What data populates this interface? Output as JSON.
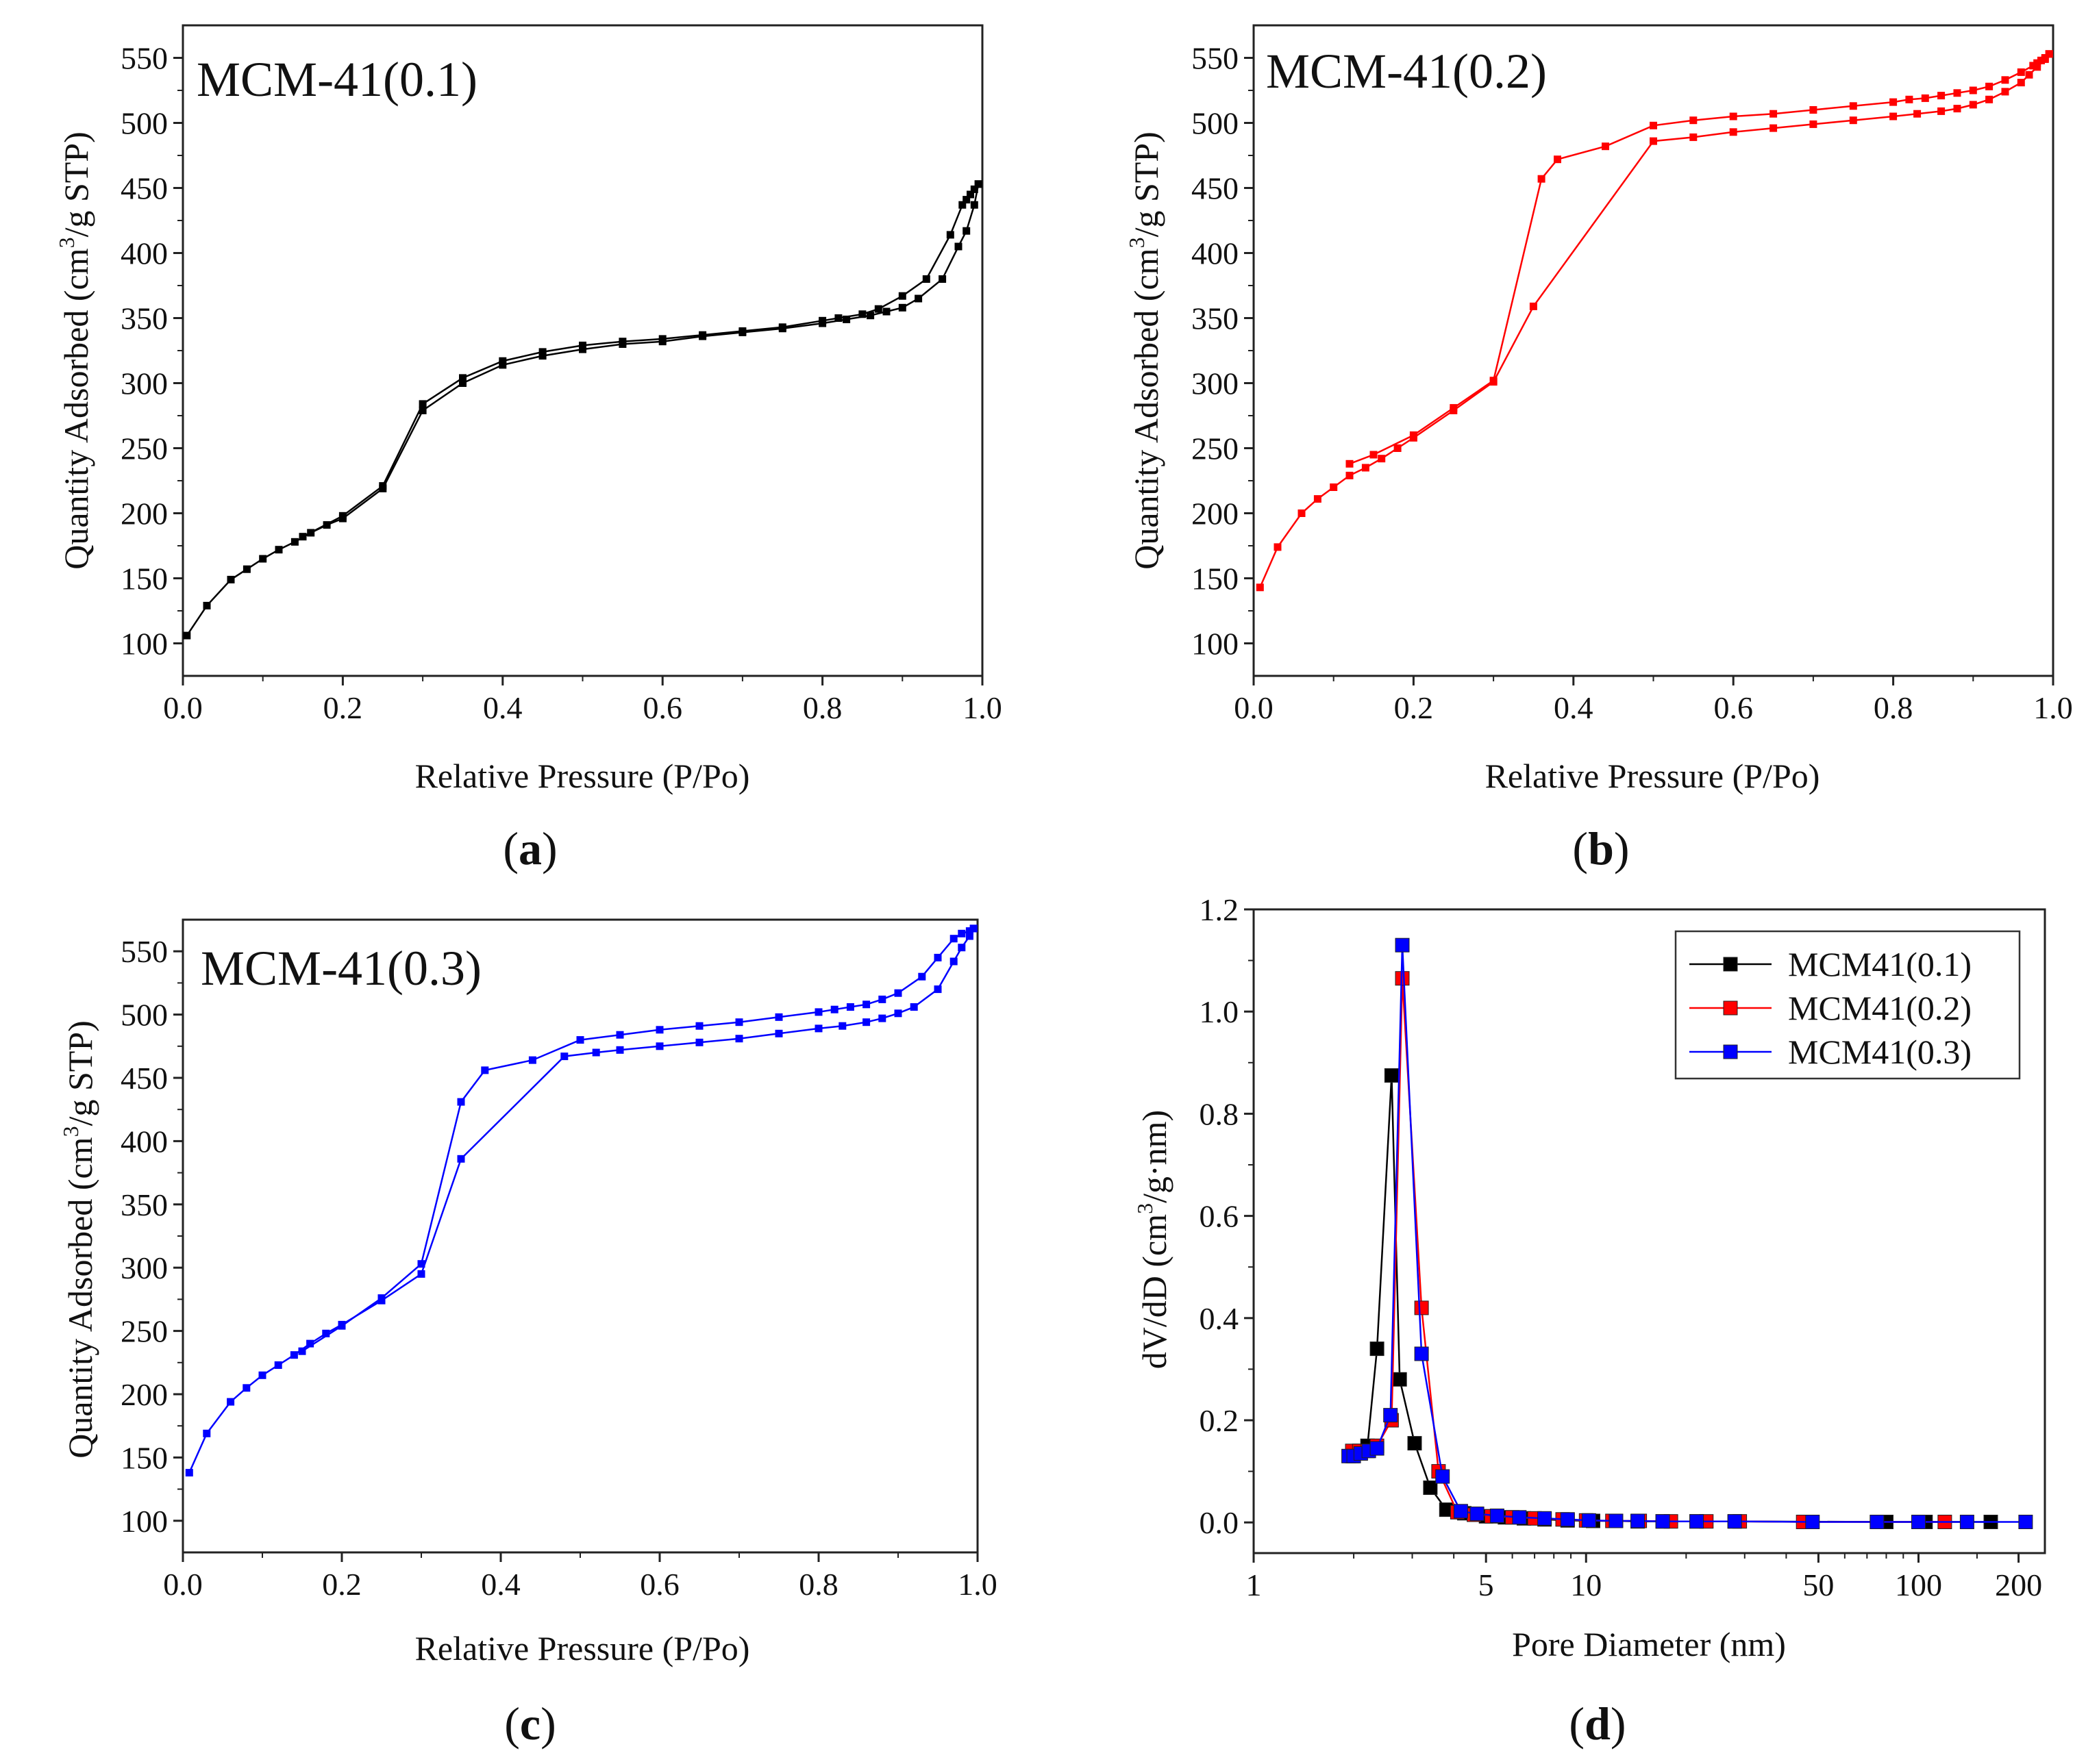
{
  "chart_data": [
    {
      "type": "line",
      "panel": "(a)",
      "panel_letter": "a",
      "title": "MCM-41(0.1)",
      "xlabel": "Relative Pressure (P/Po)",
      "ylabel": "Quantity Adsorbed (cm3/g STP)",
      "ylabel_parts": [
        "Quantity Adsorbed (cm",
        "3",
        "/g STP)"
      ],
      "xlim": [
        0,
        1
      ],
      "ylim": [
        75,
        575
      ],
      "xticks": [
        0.0,
        0.2,
        0.4,
        0.6,
        0.8,
        1.0
      ],
      "xtick_labels": [
        "0.0",
        "0.2",
        "0.4",
        "0.6",
        "0.8",
        "1.0"
      ],
      "yticks": [
        100,
        150,
        200,
        250,
        300,
        350,
        400,
        450,
        500,
        550
      ],
      "ytick_labels": [
        "100",
        "150",
        "200",
        "250",
        "300",
        "350",
        "400",
        "450",
        "500",
        "550"
      ],
      "color": "#000000",
      "series": [
        {
          "name": "adsorption",
          "x": [
            0.005,
            0.03,
            0.06,
            0.08,
            0.1,
            0.12,
            0.14,
            0.16,
            0.18,
            0.2,
            0.25,
            0.3,
            0.35,
            0.4,
            0.45,
            0.5,
            0.55,
            0.6,
            0.65,
            0.7,
            0.75,
            0.8,
            0.83,
            0.86,
            0.88,
            0.9,
            0.92,
            0.95,
            0.97,
            0.98,
            0.99,
            0.995
          ],
          "y": [
            106,
            129,
            149,
            157,
            165,
            172,
            178,
            185,
            191,
            196,
            219,
            279,
            300,
            314,
            321,
            326,
            330,
            332,
            336,
            339,
            342,
            346,
            349,
            352,
            355,
            358,
            365,
            380,
            405,
            417,
            437,
            453
          ]
        },
        {
          "name": "desorption",
          "x": [
            0.995,
            0.99,
            0.985,
            0.98,
            0.975,
            0.96,
            0.93,
            0.9,
            0.87,
            0.85,
            0.82,
            0.8,
            0.75,
            0.7,
            0.65,
            0.6,
            0.55,
            0.5,
            0.45,
            0.4,
            0.35,
            0.3,
            0.25,
            0.2,
            0.15
          ],
          "y": [
            453,
            449,
            445,
            441,
            437,
            414,
            380,
            367,
            357,
            353,
            350,
            348,
            343,
            340,
            337,
            334,
            332,
            329,
            324,
            317,
            304,
            284,
            221,
            198,
            182
          ]
        }
      ]
    },
    {
      "type": "line",
      "panel": "(b)",
      "panel_letter": "b",
      "title": "MCM-41(0.2)",
      "xlabel": "Relative Pressure (P/Po)",
      "ylabel": "Quantity Adsorbed (cm3/g STP)",
      "ylabel_parts": [
        "Quantity Adsorbed (cm",
        "3",
        "/g STP)"
      ],
      "xlim": [
        0,
        1
      ],
      "ylim": [
        75,
        575
      ],
      "xticks": [
        0.0,
        0.2,
        0.4,
        0.6,
        0.8,
        1.0
      ],
      "xtick_labels": [
        "0.0",
        "0.2",
        "0.4",
        "0.6",
        "0.8",
        "1.0"
      ],
      "yticks": [
        100,
        150,
        200,
        250,
        300,
        350,
        400,
        450,
        500,
        550
      ],
      "ytick_labels": [
        "100",
        "150",
        "200",
        "250",
        "300",
        "350",
        "400",
        "450",
        "500",
        "550"
      ],
      "color": "#ff0000",
      "series": [
        {
          "name": "adsorption",
          "x": [
            0.008,
            0.03,
            0.06,
            0.08,
            0.1,
            0.12,
            0.14,
            0.16,
            0.18,
            0.2,
            0.25,
            0.3,
            0.35,
            0.5,
            0.55,
            0.6,
            0.65,
            0.7,
            0.75,
            0.8,
            0.83,
            0.86,
            0.88,
            0.9,
            0.92,
            0.94,
            0.96,
            0.97,
            0.98,
            0.99,
            0.995
          ],
          "y": [
            143,
            174,
            200,
            211,
            220,
            229,
            235,
            242,
            250,
            258,
            279,
            301,
            359,
            486,
            489,
            493,
            496,
            499,
            502,
            505,
            507,
            509,
            511,
            514,
            518,
            524,
            531,
            537,
            543,
            549,
            553
          ]
        },
        {
          "name": "desorption",
          "x": [
            0.995,
            0.99,
            0.985,
            0.98,
            0.975,
            0.96,
            0.94,
            0.92,
            0.9,
            0.88,
            0.86,
            0.84,
            0.82,
            0.8,
            0.75,
            0.7,
            0.65,
            0.6,
            0.55,
            0.5,
            0.44,
            0.38,
            0.36,
            0.3,
            0.25,
            0.2,
            0.15,
            0.12
          ],
          "y": [
            553,
            550,
            548,
            546,
            544,
            539,
            533,
            528,
            525,
            523,
            521,
            519,
            518,
            516,
            513,
            510,
            507,
            505,
            502,
            498,
            482,
            472,
            457,
            302,
            281,
            260,
            245,
            238
          ]
        }
      ]
    },
    {
      "type": "line",
      "panel": "(c)",
      "panel_letter": "c",
      "title": "MCM-41(0.3)",
      "xlabel": "Relative Pressure (P/Po)",
      "ylabel": "Quantity Adsorbed (cm3/g STP)",
      "ylabel_parts": [
        "Quantity Adsorbed (cm",
        "3",
        "/g STP)"
      ],
      "xlim": [
        0,
        1
      ],
      "ylim": [
        75,
        575
      ],
      "xticks": [
        0.0,
        0.2,
        0.4,
        0.6,
        0.8,
        1.0
      ],
      "xtick_labels": [
        "0.0",
        "0.2",
        "0.4",
        "0.6",
        "0.8",
        "1.0"
      ],
      "yticks": [
        100,
        150,
        200,
        250,
        300,
        350,
        400,
        450,
        500,
        550
      ],
      "ytick_labels": [
        "100",
        "150",
        "200",
        "250",
        "300",
        "350",
        "400",
        "450",
        "500",
        "550"
      ],
      "color": "#0000ff",
      "series": [
        {
          "name": "adsorption",
          "x": [
            0.008,
            0.03,
            0.06,
            0.08,
            0.1,
            0.12,
            0.14,
            0.16,
            0.18,
            0.2,
            0.25,
            0.3,
            0.35,
            0.48,
            0.52,
            0.55,
            0.6,
            0.65,
            0.7,
            0.75,
            0.8,
            0.83,
            0.86,
            0.88,
            0.9,
            0.92,
            0.95,
            0.97,
            0.98,
            0.99,
            0.995
          ],
          "y": [
            138,
            169,
            194,
            205,
            215,
            223,
            231,
            240,
            248,
            255,
            274,
            295,
            386,
            467,
            470,
            472,
            475,
            478,
            481,
            485,
            489,
            491,
            494,
            497,
            501,
            506,
            520,
            542,
            553,
            562,
            568
          ]
        },
        {
          "name": "desorption",
          "x": [
            0.995,
            0.99,
            0.98,
            0.97,
            0.95,
            0.93,
            0.9,
            0.88,
            0.86,
            0.84,
            0.82,
            0.8,
            0.75,
            0.7,
            0.65,
            0.6,
            0.55,
            0.5,
            0.44,
            0.38,
            0.35,
            0.3,
            0.25,
            0.2,
            0.15
          ],
          "y": [
            568,
            566,
            564,
            560,
            545,
            530,
            517,
            512,
            508,
            506,
            504,
            502,
            498,
            494,
            491,
            488,
            484,
            480,
            464,
            456,
            431,
            303,
            276,
            254,
            234
          ]
        }
      ]
    },
    {
      "type": "line",
      "panel": "(d)",
      "panel_letter": "d",
      "title": "",
      "xlabel": "Pore Diameter (nm)",
      "ylabel": "dV/dD (cm3/g·nm)",
      "ylabel_parts": [
        "dV/dD (cm",
        "3",
        "/g·nm)"
      ],
      "xscale": "log",
      "xlim": [
        1,
        240
      ],
      "ylim": [
        -0.06,
        1.2
      ],
      "xticks": [
        1,
        5,
        10,
        50,
        100,
        200
      ],
      "xtick_labels": [
        "1",
        "5",
        "10",
        "50",
        "100",
        "200"
      ],
      "yticks": [
        0.0,
        0.2,
        0.4,
        0.6,
        0.8,
        1.0,
        1.2
      ],
      "ytick_labels": [
        "0.0",
        "0.2",
        "0.4",
        "0.6",
        "0.8",
        "1.0",
        "1.2"
      ],
      "legend_position": "top-right",
      "series": [
        {
          "name": "MCM41(0.1)",
          "color": "#000000",
          "x": [
            1.98,
            2.08,
            2.2,
            2.35,
            2.6,
            2.75,
            3.05,
            3.4,
            3.8,
            4.3,
            5.0,
            5.7,
            6.5,
            7.5,
            8.8,
            10.5,
            12.3,
            14.3,
            17.0,
            21.5,
            28.0,
            80,
            105,
            165
          ],
          "y": [
            0.13,
            0.14,
            0.15,
            0.34,
            0.875,
            0.28,
            0.155,
            0.068,
            0.025,
            0.018,
            0.012,
            0.01,
            0.008,
            0.006,
            0.004,
            0.003,
            0.003,
            0.002,
            0.002,
            0.002,
            0.002,
            0.001,
            0.001,
            0.001
          ]
        },
        {
          "name": "MCM41(0.2)",
          "color": "#ff0000",
          "x": [
            1.98,
            2.08,
            2.2,
            2.35,
            2.6,
            2.8,
            3.2,
            3.6,
            4.1,
            4.6,
            5.2,
            6.0,
            7.0,
            8.5,
            10.0,
            12.0,
            14.5,
            18.0,
            23.0,
            29.0,
            45,
            75,
            120
          ],
          "y": [
            0.14,
            0.14,
            0.14,
            0.15,
            0.2,
            1.065,
            0.42,
            0.1,
            0.02,
            0.015,
            0.012,
            0.01,
            0.008,
            0.006,
            0.004,
            0.003,
            0.003,
            0.002,
            0.002,
            0.002,
            0.001,
            0.001,
            0.001
          ]
        },
        {
          "name": "MCM41(0.3)",
          "color": "#0000ff",
          "x": [
            1.93,
            2.0,
            2.1,
            2.22,
            2.35,
            2.58,
            2.8,
            3.2,
            3.7,
            4.2,
            4.7,
            5.4,
            6.3,
            7.5,
            8.8,
            10.2,
            12.3,
            14.3,
            17.0,
            21.5,
            28.0,
            48,
            75,
            100,
            140,
            210
          ],
          "y": [
            0.13,
            0.13,
            0.135,
            0.14,
            0.145,
            0.21,
            1.13,
            0.33,
            0.09,
            0.022,
            0.017,
            0.013,
            0.01,
            0.008,
            0.006,
            0.004,
            0.003,
            0.003,
            0.002,
            0.002,
            0.002,
            0.001,
            0.001,
            0.001,
            0.001,
            0.001
          ]
        }
      ]
    }
  ]
}
